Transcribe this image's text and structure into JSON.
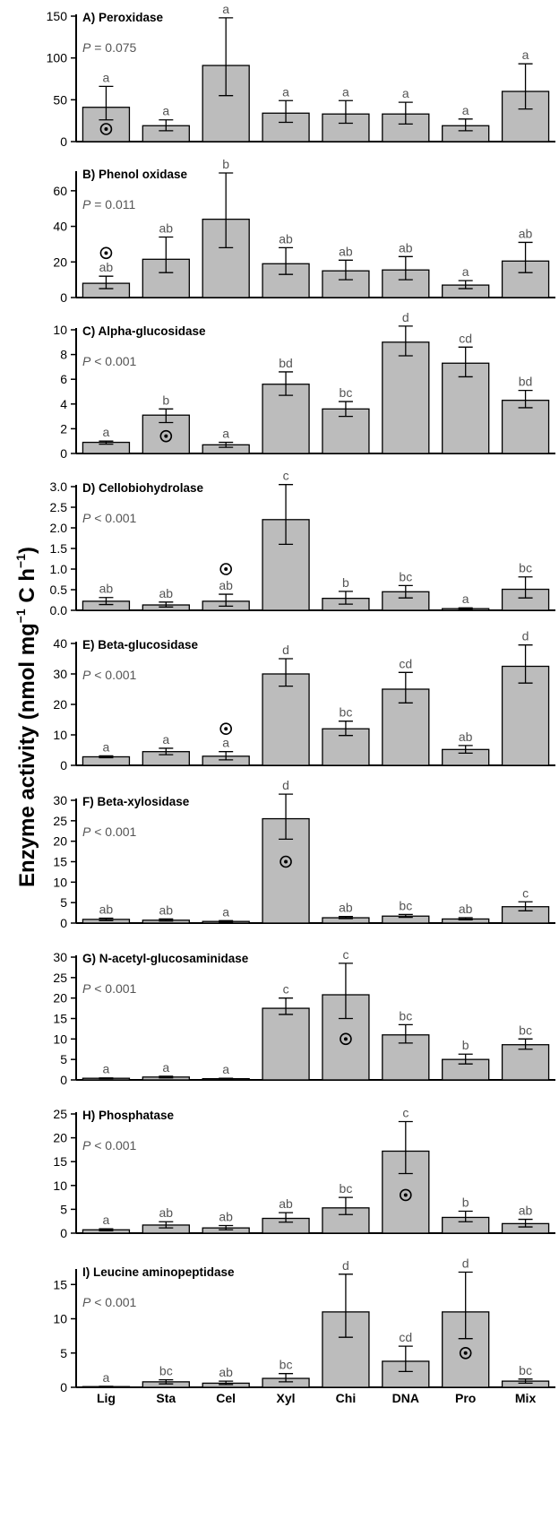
{
  "figure": {
    "ylabel": "Enzyme activity (nmol mg",
    "ylabel_sup1": "−1",
    "ylabel_mid": " C h",
    "ylabel_sup2": "−1",
    "ylabel_end": ")",
    "categories": [
      "Lig",
      "Sta",
      "Cel",
      "Xyl",
      "Chi",
      "DNA",
      "Pro",
      "Mix"
    ],
    "bar_color": "#bcbcbc",
    "edge_color": "#000000",
    "letter_color": "#555555"
  },
  "chart_data": [
    {
      "type": "bar",
      "title": "A) Peroxidase",
      "p_prefix": "P",
      "p_rest": " = 0.075",
      "ylim": [
        0,
        150
      ],
      "yticks": [
        0,
        50,
        100,
        150
      ],
      "categories": [
        "Lig",
        "Sta",
        "Cel",
        "Xyl",
        "Chi",
        "DNA",
        "Pro",
        "Mix"
      ],
      "values": [
        41,
        19,
        91,
        34,
        33,
        33,
        19,
        60
      ],
      "err_low": [
        26,
        13,
        55,
        23,
        22,
        21,
        13,
        39
      ],
      "err_high": [
        66,
        26,
        148,
        49,
        49,
        47,
        27,
        93
      ],
      "letters": [
        "a",
        "a",
        "a",
        "a",
        "a",
        "a",
        "a",
        "a"
      ],
      "marker_index": 0,
      "marker_value": 15
    },
    {
      "type": "bar",
      "title": "B) Phenol oxidase",
      "p_prefix": "P",
      "p_rest": " = 0.011",
      "ylim": [
        0,
        70
      ],
      "yticks": [
        0,
        20,
        40,
        60
      ],
      "categories": [
        "Lig",
        "Sta",
        "Cel",
        "Xyl",
        "Chi",
        "DNA",
        "Pro",
        "Mix"
      ],
      "values": [
        8,
        21.5,
        44,
        19,
        15,
        15.5,
        7,
        20.5
      ],
      "err_low": [
        5,
        14,
        28,
        13,
        10,
        10,
        5,
        14
      ],
      "err_high": [
        12,
        34,
        70,
        28,
        21,
        23,
        9.5,
        31
      ],
      "letters": [
        "ab",
        "ab",
        "b",
        "ab",
        "ab",
        "ab",
        "a",
        "ab"
      ],
      "marker_index": 0,
      "marker_value": 25
    },
    {
      "type": "bar",
      "title": "C) Alpha-glucosidase",
      "p_prefix": "P",
      "p_rest": " < 0.001",
      "ylim": [
        0,
        10
      ],
      "yticks": [
        0,
        2,
        4,
        6,
        8,
        10
      ],
      "categories": [
        "Lig",
        "Sta",
        "Cel",
        "Xyl",
        "Chi",
        "DNA",
        "Pro",
        "Mix"
      ],
      "values": [
        0.9,
        3.1,
        0.7,
        5.6,
        3.6,
        9.0,
        7.3,
        4.3
      ],
      "err_low": [
        0.75,
        2.5,
        0.5,
        4.7,
        3.0,
        7.9,
        6.2,
        3.7
      ],
      "err_high": [
        1.0,
        3.6,
        0.9,
        6.6,
        4.2,
        10.3,
        8.6,
        5.1
      ],
      "letters": [
        "a",
        "b",
        "a",
        "bd",
        "bc",
        "d",
        "cd",
        "bd"
      ],
      "marker_index": 1,
      "marker_value": 1.4
    },
    {
      "type": "bar",
      "title": "D) Cellobiohydrolase",
      "p_prefix": "P",
      "p_rest": " < 0.001",
      "ylim": [
        0,
        3.0
      ],
      "yticks": [
        0.0,
        0.5,
        1.0,
        1.5,
        2.0,
        2.5,
        3.0
      ],
      "categories": [
        "Lig",
        "Sta",
        "Cel",
        "Xyl",
        "Chi",
        "DNA",
        "Pro",
        "Mix"
      ],
      "values": [
        0.22,
        0.13,
        0.22,
        2.2,
        0.29,
        0.45,
        0.04,
        0.51
      ],
      "err_low": [
        0.14,
        0.08,
        0.1,
        1.6,
        0.15,
        0.3,
        0.02,
        0.3
      ],
      "err_high": [
        0.31,
        0.2,
        0.39,
        3.05,
        0.46,
        0.6,
        0.06,
        0.81
      ],
      "letters": [
        "ab",
        "ab",
        "ab",
        "c",
        "b",
        "bc",
        "a",
        "bc"
      ],
      "marker_index": 2,
      "marker_value": 1.0
    },
    {
      "type": "bar",
      "title": "E) Beta-glucosidase",
      "p_prefix": "P",
      "p_rest": " < 0.001",
      "ylim": [
        0,
        40
      ],
      "yticks": [
        0,
        10,
        20,
        30,
        40
      ],
      "categories": [
        "Lig",
        "Sta",
        "Cel",
        "Xyl",
        "Chi",
        "DNA",
        "Pro",
        "Mix"
      ],
      "values": [
        2.8,
        4.5,
        3.0,
        30,
        12,
        25,
        5.2,
        32.5
      ],
      "err_low": [
        2.5,
        3.5,
        1.8,
        26,
        9.8,
        20.5,
        4.0,
        27
      ],
      "err_high": [
        3.1,
        5.6,
        4.5,
        35,
        14.5,
        30.5,
        6.5,
        39.5
      ],
      "letters": [
        "a",
        "a",
        "a",
        "d",
        "bc",
        "cd",
        "ab",
        "d"
      ],
      "marker_index": 2,
      "marker_value": 12
    },
    {
      "type": "bar",
      "title": "F) Beta-xylosidase",
      "p_prefix": "P",
      "p_rest": " < 0.001",
      "ylim": [
        0,
        30
      ],
      "yticks": [
        0,
        5,
        10,
        15,
        20,
        25,
        30
      ],
      "categories": [
        "Lig",
        "Sta",
        "Cel",
        "Xyl",
        "Chi",
        "DNA",
        "Pro",
        "Mix"
      ],
      "values": [
        0.9,
        0.7,
        0.4,
        25.5,
        1.3,
        1.7,
        1.0,
        4.0
      ],
      "err_low": [
        0.6,
        0.5,
        0.2,
        20.5,
        1.1,
        1.4,
        0.8,
        3.0
      ],
      "err_high": [
        1.2,
        1.0,
        0.6,
        31.5,
        1.6,
        2.1,
        1.3,
        5.2
      ],
      "letters": [
        "ab",
        "ab",
        "a",
        "d",
        "ab",
        "bc",
        "ab",
        "c"
      ],
      "marker_index": 3,
      "marker_value": 15
    },
    {
      "type": "bar",
      "title": "G) N-acetyl-glucosaminidase",
      "p_prefix": "P",
      "p_rest": " < 0.001",
      "ylim": [
        0,
        30
      ],
      "yticks": [
        0,
        5,
        10,
        15,
        20,
        25,
        30
      ],
      "categories": [
        "Lig",
        "Sta",
        "Cel",
        "Xyl",
        "Chi",
        "DNA",
        "Pro",
        "Mix"
      ],
      "values": [
        0.4,
        0.7,
        0.3,
        17.5,
        20.8,
        11,
        5.0,
        8.6
      ],
      "err_low": [
        0.3,
        0.5,
        0.2,
        16,
        15,
        9,
        3.9,
        7.5
      ],
      "err_high": [
        0.5,
        0.9,
        0.4,
        20,
        28.5,
        13.5,
        6.3,
        10
      ],
      "letters": [
        "a",
        "a",
        "a",
        "c",
        "c",
        "bc",
        "b",
        "bc"
      ],
      "marker_index": 4,
      "marker_value": 10
    },
    {
      "type": "bar",
      "title": "H) Phosphatase",
      "p_prefix": "P",
      "p_rest": " < 0.001",
      "ylim": [
        0,
        25
      ],
      "yticks": [
        0,
        5,
        10,
        15,
        20,
        25
      ],
      "categories": [
        "Lig",
        "Sta",
        "Cel",
        "Xyl",
        "Chi",
        "DNA",
        "Pro",
        "Mix"
      ],
      "values": [
        0.7,
        1.7,
        1.1,
        3.1,
        5.3,
        17.2,
        3.3,
        2.0
      ],
      "err_low": [
        0.5,
        1.1,
        0.7,
        2.3,
        3.9,
        12.5,
        2.4,
        1.3
      ],
      "err_high": [
        0.9,
        2.4,
        1.6,
        4.3,
        7.5,
        23.4,
        4.6,
        2.9
      ],
      "letters": [
        "a",
        "ab",
        "ab",
        "ab",
        "bc",
        "c",
        "b",
        "ab"
      ],
      "marker_index": 5,
      "marker_value": 8
    },
    {
      "type": "bar",
      "title": "I) Leucine aminopeptidase",
      "p_prefix": "P",
      "p_rest": " < 0.001",
      "ylim": [
        0,
        17
      ],
      "yticks": [
        0,
        5,
        10,
        15
      ],
      "categories": [
        "Lig",
        "Sta",
        "Cel",
        "Xyl",
        "Chi",
        "DNA",
        "Pro",
        "Mix"
      ],
      "values": [
        0.1,
        0.8,
        0.6,
        1.3,
        11,
        3.8,
        11,
        0.9
      ],
      "err_low": [
        0.05,
        0.5,
        0.4,
        0.8,
        7.3,
        2.3,
        7.1,
        0.6
      ],
      "err_high": [
        0.15,
        1.1,
        0.9,
        2.0,
        16.5,
        6.0,
        16.8,
        1.2
      ],
      "letters": [
        "a",
        "bc",
        "ab",
        "bc",
        "d",
        "cd",
        "d",
        "bc"
      ],
      "marker_index": 6,
      "marker_value": 5
    }
  ]
}
